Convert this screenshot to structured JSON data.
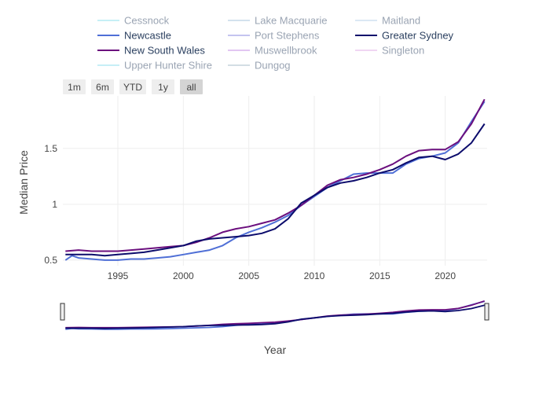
{
  "chart_data": {
    "type": "line",
    "xlabel": "Year",
    "ylabel": "Median Price",
    "xlim": [
      1990.8,
      2023.2
    ],
    "ylim": [
      0.45,
      1.97
    ],
    "x_ticks": [
      1995,
      2000,
      2005,
      2010,
      2015,
      2020
    ],
    "y_ticks": [
      0.5,
      1,
      1.5
    ],
    "y_tick_labels": [
      "0.5",
      "1",
      "1.5"
    ],
    "grid": true,
    "legend_position": "top",
    "range_buttons": [
      "1m",
      "6m",
      "YTD",
      "1y",
      "all"
    ],
    "active_range_button": "all",
    "has_range_slider": true,
    "series": [
      {
        "name": "Cessnock",
        "color": "#8fe0ee",
        "visible": false,
        "x": [],
        "y": []
      },
      {
        "name": "Lake Macquarie",
        "color": "#a9c6df",
        "visible": false,
        "x": [],
        "y": []
      },
      {
        "name": "Maitland",
        "color": "#b8d2ea",
        "visible": false,
        "x": [],
        "y": []
      },
      {
        "name": "Newcastle",
        "color": "#4f6fd6",
        "visible": true,
        "x": [
          1991,
          1991.5,
          1992,
          1993,
          1994,
          1995,
          1996,
          1997,
          1998,
          1999,
          2000,
          2001,
          2002,
          2003,
          2004,
          2005,
          2006,
          2007,
          2008,
          2009,
          2010,
          2011,
          2012,
          2013,
          2014,
          2015,
          2016,
          2017,
          2018,
          2019,
          2020,
          2021,
          2022,
          2023
        ],
        "y": [
          0.5,
          0.54,
          0.52,
          0.51,
          0.5,
          0.5,
          0.51,
          0.51,
          0.52,
          0.53,
          0.55,
          0.57,
          0.59,
          0.63,
          0.7,
          0.75,
          0.79,
          0.84,
          0.9,
          0.99,
          1.07,
          1.15,
          1.21,
          1.27,
          1.28,
          1.28,
          1.28,
          1.36,
          1.41,
          1.43,
          1.46,
          1.55,
          1.74,
          1.92
        ]
      },
      {
        "name": "Port Stephens",
        "color": "#8a8be0",
        "visible": false,
        "x": [],
        "y": []
      },
      {
        "name": "Greater Sydney",
        "color": "#0c0c6c",
        "visible": true,
        "x": [
          1991,
          1992,
          1993,
          1994,
          1995,
          1996,
          1997,
          1998,
          1999,
          2000,
          2001,
          2002,
          2003,
          2004,
          2005,
          2006,
          2007,
          2008,
          2009,
          2010,
          2011,
          2012,
          2013,
          2014,
          2015,
          2016,
          2017,
          2018,
          2019,
          2020,
          2021,
          2022,
          2023
        ],
        "y": [
          0.55,
          0.55,
          0.55,
          0.54,
          0.55,
          0.56,
          0.57,
          0.59,
          0.61,
          0.63,
          0.67,
          0.69,
          0.7,
          0.71,
          0.72,
          0.74,
          0.78,
          0.87,
          1.01,
          1.08,
          1.15,
          1.19,
          1.21,
          1.24,
          1.28,
          1.31,
          1.37,
          1.42,
          1.43,
          1.4,
          1.45,
          1.55,
          1.72
        ]
      },
      {
        "name": "New South Wales",
        "color": "#6b0f7e",
        "visible": true,
        "x": [
          1991,
          1992,
          1993,
          1994,
          1995,
          1996,
          1997,
          1998,
          1999,
          2000,
          2001,
          2002,
          2003,
          2004,
          2005,
          2006,
          2007,
          2008,
          2009,
          2010,
          2011,
          2012,
          2013,
          2014,
          2015,
          2016,
          2017,
          2018,
          2019,
          2020,
          2021,
          2022,
          2023
        ],
        "y": [
          0.58,
          0.59,
          0.58,
          0.58,
          0.58,
          0.59,
          0.6,
          0.61,
          0.62,
          0.63,
          0.66,
          0.7,
          0.75,
          0.78,
          0.8,
          0.83,
          0.86,
          0.92,
          0.99,
          1.08,
          1.17,
          1.22,
          1.24,
          1.27,
          1.31,
          1.36,
          1.43,
          1.48,
          1.49,
          1.49,
          1.56,
          1.72,
          1.94
        ]
      },
      {
        "name": "Muswellbrook",
        "color": "#c78ee6",
        "visible": false,
        "x": [],
        "y": []
      },
      {
        "name": "Singleton",
        "color": "#e3aee8",
        "visible": false,
        "x": [],
        "y": []
      },
      {
        "name": "Upper Hunter Shire",
        "color": "#8fe0ee",
        "visible": false,
        "x": [],
        "y": []
      },
      {
        "name": "Dungog",
        "color": "#a9bccb",
        "visible": false,
        "x": [],
        "y": []
      }
    ]
  }
}
